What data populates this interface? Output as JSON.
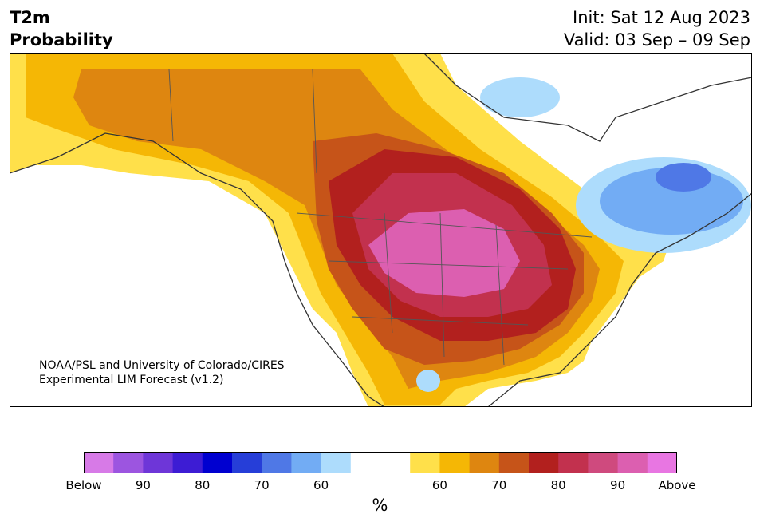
{
  "header": {
    "title_line1": "T2m",
    "title_line2": "Probability",
    "init": "Init: Sat 12 Aug 2023",
    "valid": "Valid: 03 Sep – 09 Sep"
  },
  "credit": {
    "line1": "NOAA/PSL and University of Colorado/CIRES",
    "line2": "Experimental LIM Forecast (v1.2)"
  },
  "colorbar": {
    "unit": "%",
    "colors": [
      "#d77ae7",
      "#9c55e0",
      "#6e36d8",
      "#3d1cd4",
      "#0000d0",
      "#263ed8",
      "#4f78e6",
      "#72acf4",
      "#addcfc",
      "#ffffff",
      "#ffffff",
      "#ffe04a",
      "#f5b705",
      "#de8610",
      "#c65419",
      "#b2201e",
      "#c2314e",
      "#cf4a7e",
      "#dc5fb0",
      "#e876e2"
    ],
    "labels": [
      "Below",
      "90",
      "80",
      "70",
      "60",
      "60",
      "70",
      "80",
      "90",
      "Above"
    ]
  },
  "legend_colors": {
    "below_normal_light": "#addcfc",
    "below_normal_mid": "#72acf4",
    "below_normal_strong": "#4f78e6",
    "above_60": "#ffe04a",
    "above_70": "#de8610",
    "above_80": "#b2201e",
    "above_90": "#dc5fb0"
  }
}
